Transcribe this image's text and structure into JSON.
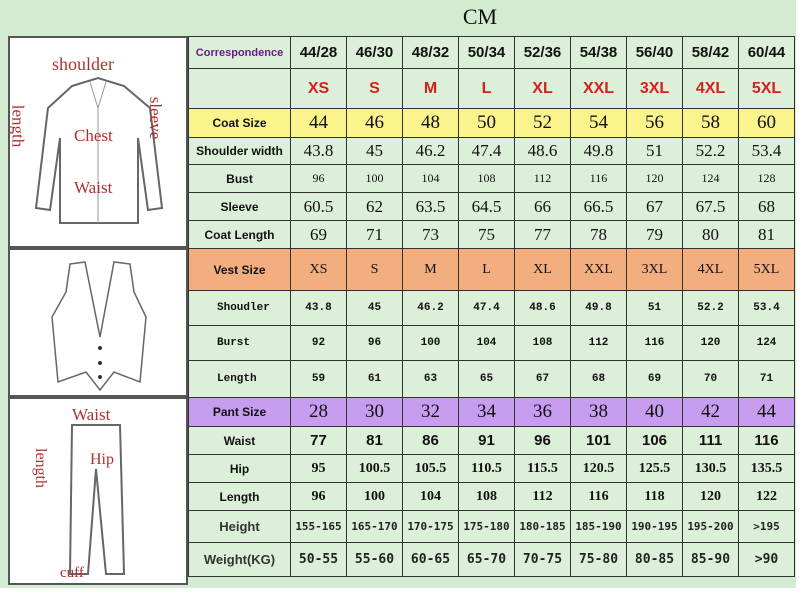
{
  "title": "CM",
  "correspondence": {
    "label": "Correspondence",
    "values": [
      "44/28",
      "46/30",
      "48/32",
      "50/34",
      "52/36",
      "54/38",
      "56/40",
      "58/42",
      "60/44"
    ]
  },
  "letter_sizes": [
    "XS",
    "S",
    "M",
    "L",
    "XL",
    "XXL",
    "3XL",
    "4XL",
    "5XL"
  ],
  "coat": {
    "header": {
      "label": "Coat Size",
      "values": [
        "44",
        "46",
        "48",
        "50",
        "52",
        "54",
        "56",
        "58",
        "60"
      ]
    },
    "rows": [
      {
        "label": "Shoulder width",
        "values": [
          "43.8",
          "45",
          "46.2",
          "47.4",
          "48.6",
          "49.8",
          "51",
          "52.2",
          "53.4"
        ]
      },
      {
        "label": "Bust",
        "values": [
          "96",
          "100",
          "104",
          "108",
          "112",
          "116",
          "120",
          "124",
          "128"
        ]
      },
      {
        "label": "Sleeve",
        "values": [
          "60.5",
          "62",
          "63.5",
          "64.5",
          "66",
          "66.5",
          "67",
          "67.5",
          "68"
        ]
      },
      {
        "label": "Coat Length",
        "values": [
          "69",
          "71",
          "73",
          "75",
          "77",
          "78",
          "79",
          "80",
          "81"
        ]
      }
    ]
  },
  "vest": {
    "header": {
      "label": "Vest Size",
      "values": [
        "XS",
        "S",
        "M",
        "L",
        "XL",
        "XXL",
        "3XL",
        "4XL",
        "5XL"
      ]
    },
    "rows": [
      {
        "label": "Shoudler",
        "values": [
          "43.8",
          "45",
          "46.2",
          "47.4",
          "48.6",
          "49.8",
          "51",
          "52.2",
          "53.4"
        ]
      },
      {
        "label": "Burst",
        "values": [
          "92",
          "96",
          "100",
          "104",
          "108",
          "112",
          "116",
          "120",
          "124"
        ]
      },
      {
        "label": "Length",
        "values": [
          "59",
          "61",
          "63",
          "65",
          "67",
          "68",
          "69",
          "70",
          "71"
        ]
      }
    ]
  },
  "pant": {
    "header": {
      "label": "Pant Size",
      "values": [
        "28",
        "30",
        "32",
        "34",
        "36",
        "38",
        "40",
        "42",
        "44"
      ]
    },
    "rows": [
      {
        "label": "Waist",
        "values": [
          "77",
          "81",
          "86",
          "91",
          "96",
          "101",
          "106",
          "111",
          "116"
        ]
      },
      {
        "label": "Hip",
        "values": [
          "95",
          "100.5",
          "105.5",
          "110.5",
          "115.5",
          "120.5",
          "125.5",
          "130.5",
          "135.5"
        ]
      },
      {
        "label": "Length",
        "values": [
          "96",
          "100",
          "104",
          "108",
          "112",
          "116",
          "118",
          "120",
          "122"
        ]
      }
    ]
  },
  "body": [
    {
      "label": "Height",
      "values": [
        "155-165",
        "165-170",
        "170-175",
        "175-180",
        "180-185",
        "185-190",
        "190-195",
        "195-200",
        ">195"
      ]
    },
    {
      "label": "Weight(KG)",
      "values": [
        "50-55",
        "55-60",
        "60-65",
        "65-70",
        "70-75",
        "75-80",
        "80-85",
        "85-90",
        ">90"
      ]
    }
  ],
  "diagram_labels": {
    "coat": {
      "shoulder": "shoulder",
      "length": "length",
      "sleeve": "sleeve",
      "chest": "Chest",
      "waist": "Waist"
    },
    "pant": {
      "waist": "Waist",
      "length": "length",
      "hip": "Hip",
      "cuff": "cuff"
    }
  },
  "colors": {
    "background": "#d3ebd1",
    "cell": "#dcefd8",
    "coat_header": "#fbf38c",
    "vest_header": "#f2ae7e",
    "pant_header": "#c79df0",
    "size_letters": "#d42020",
    "correspondence_label": "#6a1a8a"
  }
}
